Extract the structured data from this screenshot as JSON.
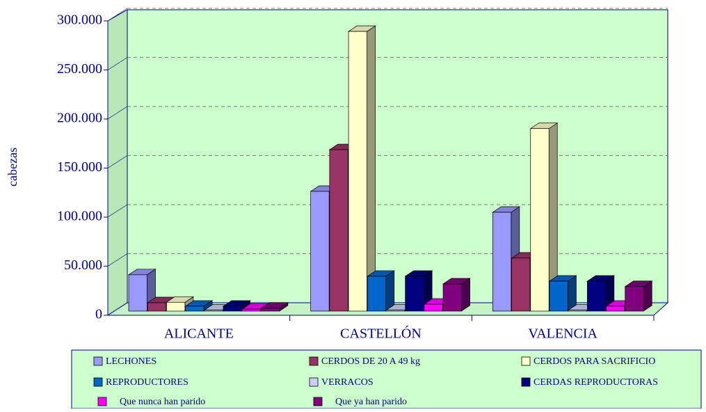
{
  "chart_data": {
    "type": "bar3d",
    "y_label": "cabezas",
    "categories": [
      "ALICANTE",
      "CASTELLÓN",
      "VALENCIA"
    ],
    "series": [
      {
        "name": "LECHONES",
        "color": "#9999ff",
        "values": [
          37000,
          122000,
          100700
        ]
      },
      {
        "name": "CERDOS DE 20 A 49 kg",
        "color": "#993366",
        "values": [
          8500,
          164500,
          54000
        ]
      },
      {
        "name": "CERDOS PARA SACRIFICIO",
        "color": "#ffffcc",
        "values": [
          9000,
          285000,
          186000
        ]
      },
      {
        "name": "REPRODUCTORES",
        "color": "#0066cc",
        "values": [
          5000,
          35500,
          30500
        ]
      },
      {
        "name": "VERRACOS",
        "color": "#ccccff",
        "values": [
          1000,
          1000,
          1000
        ]
      },
      {
        "name": "CERDAS REPRODUCTORAS",
        "color": "#000080",
        "values": [
          5000,
          35500,
          30500
        ]
      },
      {
        "name": "Que nunca han parido",
        "color": "#ff00ff",
        "values": [
          2000,
          7000,
          5000
        ]
      },
      {
        "name": "Que ya han parido",
        "color": "#800080",
        "values": [
          3000,
          27700,
          25000
        ]
      }
    ],
    "ylim": [
      0,
      300000
    ],
    "yticks": [
      0,
      {
        "value": 50000,
        "label": "50.000"
      },
      {
        "value": 100000,
        "label": "100.000"
      },
      {
        "value": 150000,
        "label": "150.000"
      },
      {
        "value": 200000,
        "label": "200.000"
      },
      {
        "value": 250000,
        "label": "250.000"
      },
      {
        "value": 300000,
        "label": "300.000"
      }
    ],
    "grid": true,
    "legend": "bottom"
  }
}
